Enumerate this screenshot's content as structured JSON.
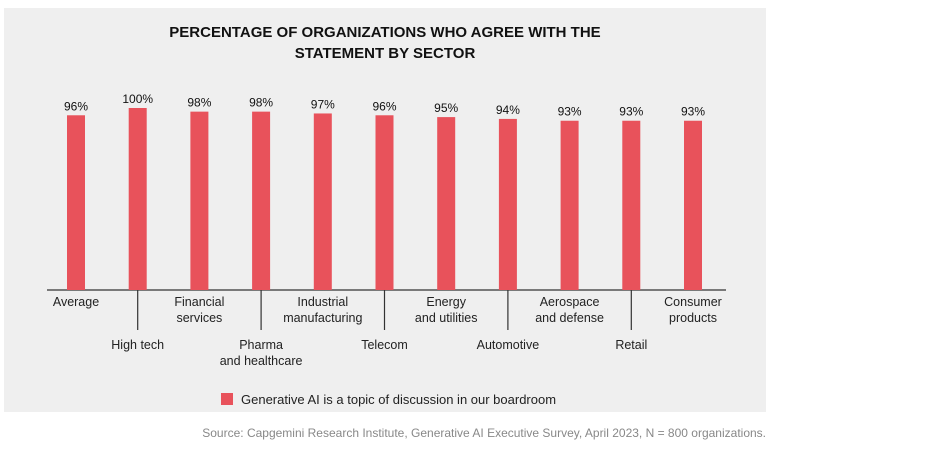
{
  "chart_data": {
    "type": "bar",
    "title": "PERCENTAGE OF ORGANIZATIONS WHO AGREE WITH THE STATEMENT BY SECTOR",
    "title_lines": [
      "PERCENTAGE OF ORGANIZATIONS WHO AGREE WITH THE",
      "STATEMENT BY SECTOR"
    ],
    "categories": [
      [
        "Average"
      ],
      [
        "High tech"
      ],
      [
        "Financial",
        "services"
      ],
      [
        "Pharma",
        "and healthcare"
      ],
      [
        "Industrial",
        "manufacturing"
      ],
      [
        "Telecom"
      ],
      [
        "Energy",
        "and utilities"
      ],
      [
        "Automotive"
      ],
      [
        "Aerospace",
        "and defense"
      ],
      [
        "Retail"
      ],
      [
        "Consumer",
        "products"
      ]
    ],
    "series": [
      {
        "name": "Generative AI is a topic of discussion in our boardroom",
        "color": "#e8525b",
        "values": [
          96,
          100,
          98,
          98,
          97,
          96,
          95,
          94,
          93,
          93,
          93
        ]
      }
    ],
    "value_labels": [
      "96%",
      "100%",
      "98%",
      "98%",
      "97%",
      "96%",
      "95%",
      "94%",
      "93%",
      "93%",
      "93%"
    ],
    "ylim": [
      0,
      100
    ],
    "grid": false,
    "legend_position": "bottom"
  },
  "source": "Source: Capgemini Research Institute, Generative AI Executive Survey, April 2023, N = 800 organizations."
}
